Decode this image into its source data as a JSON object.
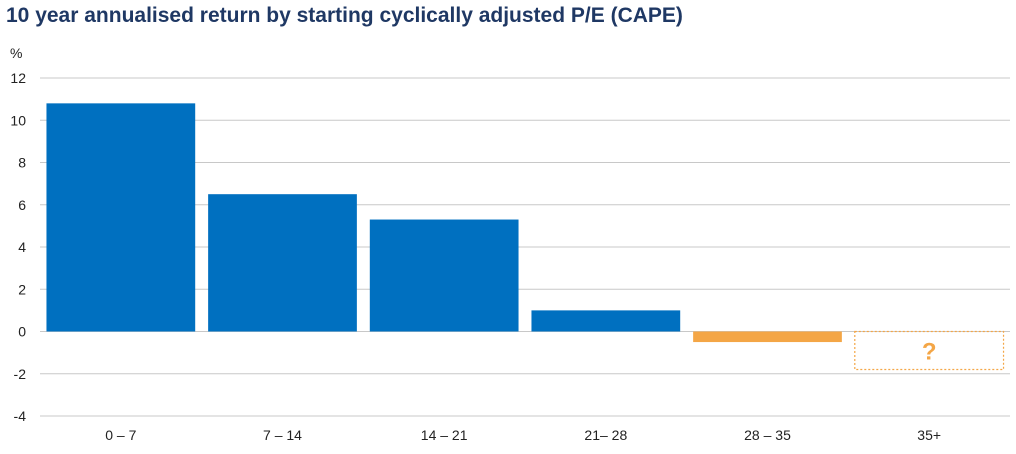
{
  "chart_data": {
    "type": "bar",
    "title": "10 year annualised return by starting cyclically adjusted P/E (CAPE)",
    "ylabel": "%",
    "xlabel": "",
    "categories": [
      "0 – 7",
      "7 – 14",
      "14 – 21",
      "21– 28",
      "28 – 35",
      "35+"
    ],
    "values": [
      10.8,
      6.5,
      5.3,
      1.0,
      -0.5,
      null
    ],
    "ylim": [
      -4,
      12
    ],
    "yticks": [
      12,
      10,
      8,
      6,
      4,
      2,
      0,
      -2,
      -4
    ],
    "grid": true,
    "legend": "none",
    "unknown_category": {
      "category": "35+",
      "marker_text": "?",
      "range": [
        -1.8,
        0
      ]
    }
  },
  "colors": {
    "positive_bar": "#0070c0",
    "negative_bar": "#f4a646",
    "placeholder": "#f4a646",
    "grid": "#c8c8c8",
    "title": "#1f3864"
  }
}
